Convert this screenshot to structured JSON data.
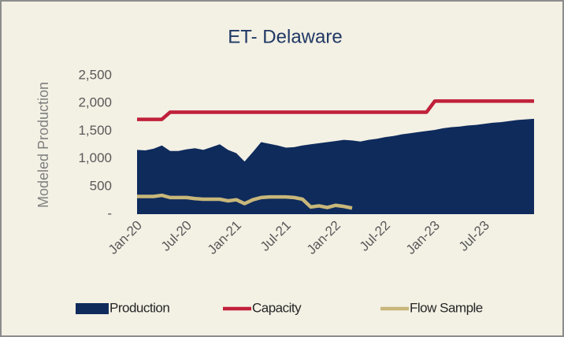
{
  "chart_data": {
    "type": "line",
    "title": "ET- Delaware",
    "y_label": "Modeled Production",
    "categories": [
      "Jan-20",
      null,
      null,
      null,
      null,
      null,
      "Jul-20",
      null,
      null,
      null,
      null,
      null,
      "Jan-21",
      null,
      null,
      null,
      null,
      null,
      "Jul-21",
      null,
      null,
      null,
      null,
      null,
      "Jan-22",
      null,
      null,
      null,
      null,
      null,
      "Jul-22",
      null,
      null,
      null,
      null,
      null,
      "Jan-23",
      null,
      null,
      null,
      null,
      null,
      "Jul-23",
      null,
      null,
      null,
      null,
      null,
      null
    ],
    "series": [
      {
        "name": "Production",
        "kind": "area",
        "color": "#0e2b5c",
        "values": [
          1160,
          1150,
          1180,
          1240,
          1140,
          1140,
          1170,
          1190,
          1160,
          1210,
          1260,
          1160,
          1100,
          950,
          1120,
          1300,
          1270,
          1240,
          1200,
          1210,
          1240,
          1260,
          1280,
          1300,
          1320,
          1340,
          1330,
          1310,
          1340,
          1360,
          1390,
          1410,
          1440,
          1460,
          1480,
          1500,
          1520,
          1550,
          1570,
          1580,
          1600,
          1610,
          1630,
          1650,
          1660,
          1680,
          1700,
          1710,
          1720
        ]
      },
      {
        "name": "Capacity",
        "kind": "line",
        "color": "#c0203a",
        "values": [
          1710,
          1710,
          1710,
          1710,
          1840,
          1840,
          1840,
          1840,
          1840,
          1840,
          1840,
          1840,
          1840,
          1840,
          1840,
          1840,
          1840,
          1840,
          1840,
          1840,
          1840,
          1840,
          1840,
          1840,
          1840,
          1840,
          1840,
          1840,
          1840,
          1840,
          1840,
          1840,
          1840,
          1840,
          1840,
          1840,
          2040,
          2040,
          2040,
          2040,
          2040,
          2040,
          2040,
          2040,
          2040,
          2040,
          2040,
          2040,
          2040
        ]
      },
      {
        "name": "Flow Sample",
        "kind": "line",
        "color": "#c8b77a",
        "values": [
          320,
          320,
          320,
          340,
          300,
          300,
          300,
          280,
          270,
          270,
          270,
          240,
          260,
          190,
          260,
          300,
          310,
          310,
          310,
          300,
          270,
          130,
          150,
          120,
          160,
          140,
          110,
          null,
          null,
          null,
          null,
          null,
          null,
          null,
          null,
          null,
          null,
          null,
          null,
          null,
          null,
          null,
          null,
          null,
          null,
          null,
          null,
          null,
          null
        ]
      }
    ],
    "ylim": [
      0,
      2500
    ],
    "yticks": [
      {
        "value": 0,
        "label": "-"
      },
      500,
      {
        "value": 1000,
        "label": "1,000"
      },
      {
        "value": 1500,
        "label": "1,500"
      },
      {
        "value": 2000,
        "label": "2,000"
      },
      {
        "value": 2500,
        "label": "2,500"
      }
    ],
    "grid": false,
    "legend": "bottom"
  }
}
